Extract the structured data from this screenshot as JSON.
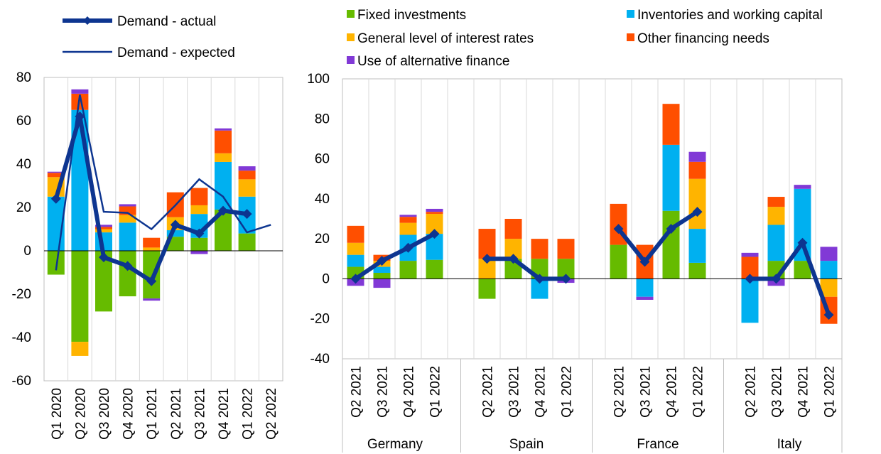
{
  "colors": {
    "fixed_investments": "#66bb00",
    "inventories": "#00b0f0",
    "interest_rates": "#ffb400",
    "other_financing": "#ff4f00",
    "alternative_finance": "#8139d6",
    "demand": "#0d3590",
    "grid": "#d9d9d9",
    "axis": "#000000"
  },
  "legend": {
    "left": [
      {
        "key": "demand_actual",
        "label": "Demand - actual",
        "icon": "thick-line-diamond-icon"
      },
      {
        "key": "demand_expected",
        "label": "Demand - expected",
        "icon": "thin-line-icon"
      }
    ],
    "right": [
      {
        "key": "fixed_investments",
        "label": "Fixed investments"
      },
      {
        "key": "inventories",
        "label": "Inventories and working capital"
      },
      {
        "key": "interest_rates",
        "label": "General level of interest rates"
      },
      {
        "key": "other_financing",
        "label": "Other financing needs"
      },
      {
        "key": "alternative_finance",
        "label": "Use of alternative finance"
      }
    ]
  },
  "chart_data": [
    {
      "type": "bar",
      "stacked": true,
      "categories": [
        "Q1 2020",
        "Q2 2020",
        "Q3 2020",
        "Q4 2020",
        "Q1 2021",
        "Q2 2021",
        "Q3 2021",
        "Q4 2021",
        "Q1 2022",
        "Q2 2022"
      ],
      "ylim": [
        -60,
        80
      ],
      "yticks": [
        -60,
        -40,
        -20,
        0,
        20,
        40,
        60,
        80
      ],
      "grid": false,
      "series": [
        {
          "key": "fixed_investments",
          "values": [
            -11,
            -42,
            -28,
            -21,
            -22,
            6.5,
            6,
            19,
            8,
            null
          ]
        },
        {
          "key": "inventories",
          "values": [
            25,
            65,
            8.5,
            13,
            0,
            3,
            11,
            22,
            17,
            null
          ]
        },
        {
          "key": "interest_rates",
          "values": [
            9,
            -6.5,
            1.5,
            3.5,
            1.5,
            6,
            4,
            4,
            8,
            null
          ]
        },
        {
          "key": "other_financing",
          "values": [
            2,
            7.5,
            1,
            4,
            4.5,
            11.5,
            8,
            10.5,
            4,
            null
          ]
        },
        {
          "key": "alternative_finance",
          "values": [
            0.5,
            2,
            1,
            1,
            -1,
            0,
            -1.5,
            1,
            2,
            null
          ]
        }
      ],
      "lines": [
        {
          "key": "demand_actual",
          "values": [
            24,
            62,
            -3,
            -7,
            -14,
            12,
            8,
            18.5,
            17,
            null
          ]
        },
        {
          "key": "demand_expected",
          "values": [
            -9,
            72,
            18,
            17.5,
            10,
            21,
            33,
            25,
            8.5,
            12
          ]
        }
      ]
    },
    {
      "type": "bar",
      "stacked": true,
      "groups": [
        {
          "name": "Germany",
          "categories": [
            "Q2 2021",
            "Q3 2021",
            "Q4 2021",
            "Q1 2022"
          ]
        },
        {
          "name": "Spain",
          "categories": [
            "Q2 2021",
            "Q3 2021",
            "Q4 2021",
            "Q1 2022"
          ]
        },
        {
          "name": "France",
          "categories": [
            "Q2 2021",
            "Q3 2021",
            "Q4 2021",
            "Q1 2022"
          ]
        },
        {
          "name": "Italy",
          "categories": [
            "Q2 2021",
            "Q3 2021",
            "Q4 2021",
            "Q1 2022"
          ]
        }
      ],
      "ylim": [
        -40,
        100
      ],
      "yticks": [
        -40,
        -20,
        0,
        20,
        40,
        60,
        80,
        100
      ],
      "grid": false,
      "series": [
        {
          "key": "fixed_investments",
          "values": [
            [
              6,
              3,
              9,
              9.5
            ],
            [
              -10,
              10,
              10,
              10
            ],
            [
              17,
              0,
              34,
              8
            ],
            [
              0,
              9,
              9,
              0
            ]
          ]
        },
        {
          "key": "inventories",
          "values": [
            [
              6,
              3,
              13,
              13
            ],
            [
              0,
              0,
              -10,
              0
            ],
            [
              0,
              -9,
              33,
              17
            ],
            [
              -22,
              18,
              36,
              9
            ]
          ]
        },
        {
          "key": "interest_rates",
          "values": [
            [
              6,
              3,
              6,
              10
            ],
            [
              10,
              10,
              0,
              0
            ],
            [
              0,
              0,
              0,
              25
            ],
            [
              0,
              9,
              0,
              -9
            ]
          ]
        },
        {
          "key": "other_financing",
          "values": [
            [
              8.5,
              3,
              3,
              1
            ],
            [
              15,
              10,
              10,
              10
            ],
            [
              20.5,
              17,
              20.5,
              8.5
            ],
            [
              11,
              5,
              0,
              -13.5
            ]
          ]
        },
        {
          "key": "alternative_finance",
          "values": [
            [
              -3.5,
              -4.5,
              1,
              1.5
            ],
            [
              0,
              0,
              0,
              -2
            ],
            [
              0,
              -1.5,
              0,
              5
            ],
            [
              2,
              -3.5,
              2,
              7
            ]
          ]
        }
      ],
      "lines": [
        {
          "key": "demand_actual",
          "values": [
            [
              0,
              9,
              15.5,
              22.5
            ],
            [
              10,
              10,
              0,
              0
            ],
            [
              25,
              8.5,
              25,
              33.5
            ],
            [
              0,
              0,
              18,
              -18
            ]
          ]
        }
      ]
    }
  ]
}
